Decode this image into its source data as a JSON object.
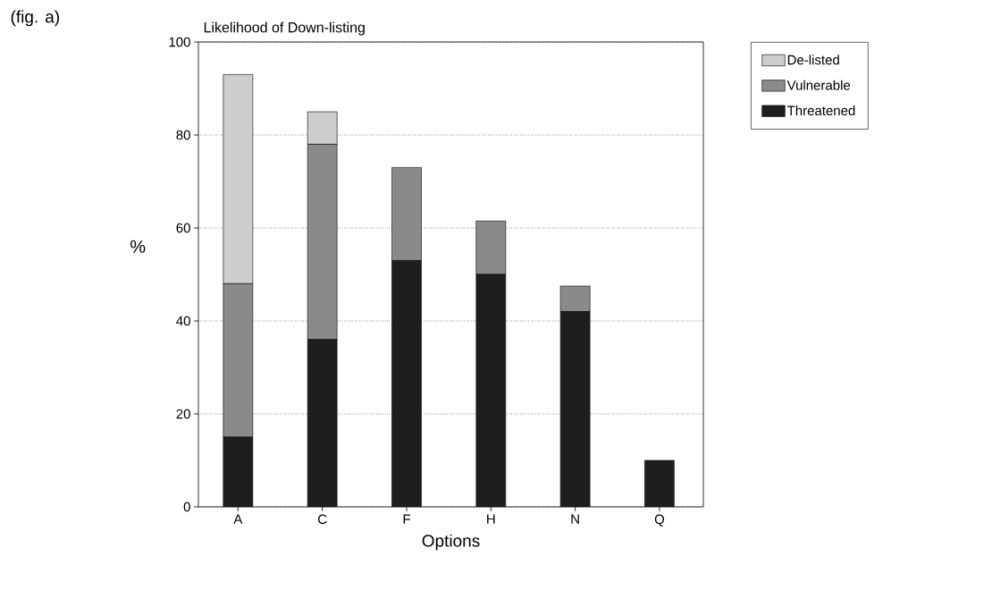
{
  "chart_data": {
    "type": "bar",
    "stacked": true,
    "title": "Likelihood of Down-listing",
    "xlabel": "Options",
    "ylabel": "%",
    "annotations": [
      "(fig. a)"
    ],
    "categories": [
      "A",
      "C",
      "F",
      "H",
      "N",
      "Q"
    ],
    "series": [
      {
        "name": "Threatened",
        "color": "#1e1e1e",
        "values": [
          15,
          36,
          53,
          50,
          42,
          10
        ]
      },
      {
        "name": "Vulnerable",
        "color": "#8a8a8a",
        "values": [
          33,
          42,
          20,
          11.5,
          5.5,
          0
        ]
      },
      {
        "name": "De-listed",
        "color": "#cdcdcd",
        "values": [
          45,
          7,
          0,
          0,
          0,
          0
        ]
      }
    ],
    "ylim": [
      0,
      100
    ],
    "yticks": [
      0,
      20,
      40,
      60,
      80,
      100
    ],
    "grid": "y",
    "legend": "top right"
  }
}
